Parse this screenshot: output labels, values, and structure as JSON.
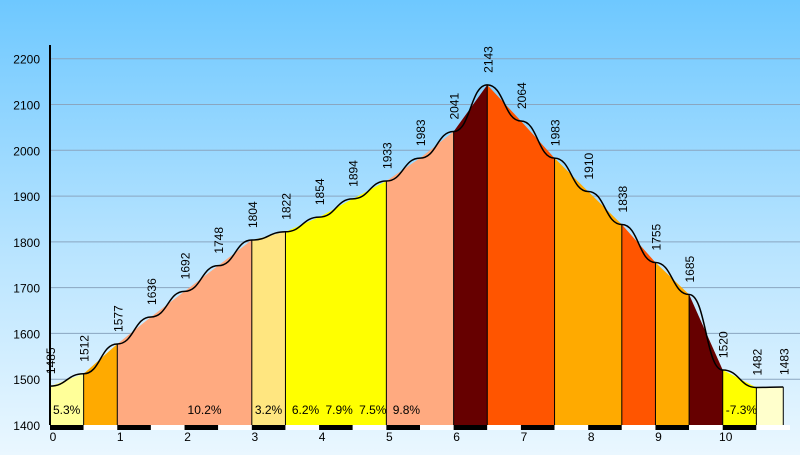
{
  "chart_data": {
    "type": "area",
    "title": "",
    "xlabel": "",
    "ylabel": "",
    "xlim": [
      0,
      11
    ],
    "ylim": [
      1400,
      2230
    ],
    "y_ticks": [
      1400,
      1500,
      1600,
      1700,
      1800,
      1900,
      2000,
      2100,
      2200
    ],
    "x_ticks": [
      0,
      1,
      2,
      3,
      4,
      5,
      6,
      7,
      8,
      9,
      10
    ],
    "grid": true,
    "points": [
      {
        "x": 0.0,
        "elevation": 1485
      },
      {
        "x": 0.5,
        "elevation": 1512
      },
      {
        "x": 1.0,
        "elevation": 1577
      },
      {
        "x": 1.5,
        "elevation": 1636
      },
      {
        "x": 2.0,
        "elevation": 1692
      },
      {
        "x": 2.5,
        "elevation": 1748
      },
      {
        "x": 3.0,
        "elevation": 1804
      },
      {
        "x": 3.5,
        "elevation": 1822
      },
      {
        "x": 4.0,
        "elevation": 1854
      },
      {
        "x": 4.5,
        "elevation": 1894
      },
      {
        "x": 5.0,
        "elevation": 1933
      },
      {
        "x": 5.5,
        "elevation": 1983
      },
      {
        "x": 6.0,
        "elevation": 2041
      },
      {
        "x": 6.5,
        "elevation": 2143
      },
      {
        "x": 7.0,
        "elevation": 2064
      },
      {
        "x": 7.5,
        "elevation": 1983
      },
      {
        "x": 8.0,
        "elevation": 1910
      },
      {
        "x": 8.5,
        "elevation": 1838
      },
      {
        "x": 9.0,
        "elevation": 1755
      },
      {
        "x": 9.5,
        "elevation": 1685
      },
      {
        "x": 10.0,
        "elevation": 1520
      },
      {
        "x": 10.5,
        "elevation": 1482
      },
      {
        "x": 10.9,
        "elevation": 1483
      }
    ],
    "segments": [
      {
        "from": 0.0,
        "to": 0.5,
        "color": "#ffff99"
      },
      {
        "from": 0.5,
        "to": 1.0,
        "color": "#ffaa00"
      },
      {
        "from": 1.0,
        "to": 3.0,
        "color": "#ffaa80"
      },
      {
        "from": 3.0,
        "to": 3.5,
        "color": "#ffe680"
      },
      {
        "from": 3.5,
        "to": 5.0,
        "color": "#ffff00"
      },
      {
        "from": 5.0,
        "to": 6.0,
        "color": "#ffaa80"
      },
      {
        "from": 6.0,
        "to": 6.5,
        "color": "#660000"
      },
      {
        "from": 6.5,
        "to": 7.5,
        "color": "#ff5500"
      },
      {
        "from": 7.5,
        "to": 8.5,
        "color": "#ffaa00"
      },
      {
        "from": 8.5,
        "to": 9.0,
        "color": "#ff5500"
      },
      {
        "from": 9.0,
        "to": 9.5,
        "color": "#ffaa00"
      },
      {
        "from": 9.5,
        "to": 10.0,
        "color": "#660000"
      },
      {
        "from": 10.0,
        "to": 10.5,
        "color": "#ffff00"
      },
      {
        "from": 10.5,
        "to": 10.9,
        "color": "#ffffcc"
      }
    ],
    "grade_labels": [
      {
        "x": 0.0,
        "text": "5.3%"
      },
      {
        "x": 2.0,
        "text": "10.2%"
      },
      {
        "x": 3.0,
        "text": "3.2%"
      },
      {
        "x": 3.55,
        "text": "6.2%"
      },
      {
        "x": 4.05,
        "text": "7.9%"
      },
      {
        "x": 4.55,
        "text": "7.5%"
      },
      {
        "x": 5.05,
        "text": "9.8%"
      },
      {
        "x": 10.0,
        "text": "-7.3%"
      }
    ],
    "colors": {
      "outline": "#000000",
      "grid": "#8aa6c0",
      "bar_dark": "#000000",
      "bar_light": "#ffffff"
    }
  }
}
